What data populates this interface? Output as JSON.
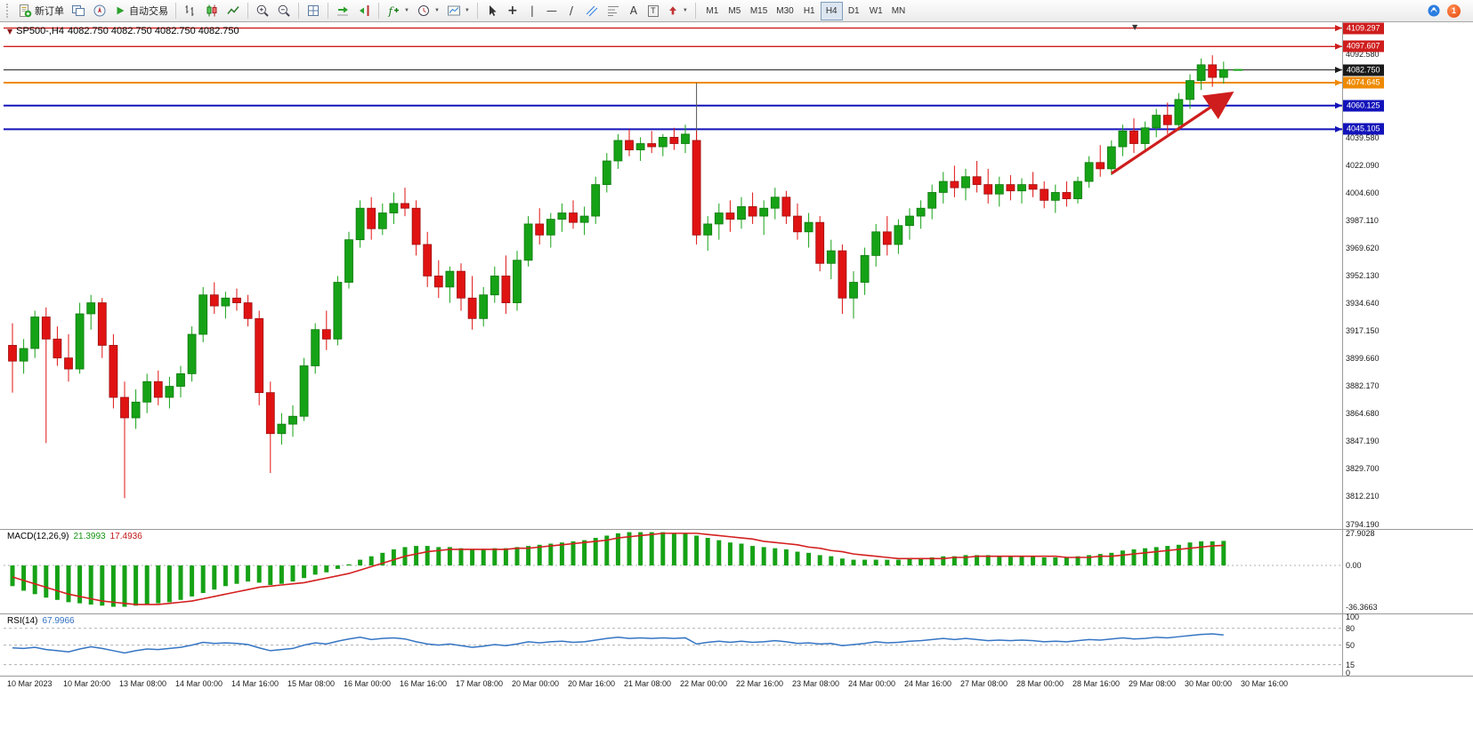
{
  "toolbar": {
    "new_order": "新订单",
    "auto_trading": "自动交易",
    "text_tool": "A",
    "label_tool": "T",
    "timeframes": [
      {
        "label": "M1",
        "active": false
      },
      {
        "label": "M5",
        "active": false
      },
      {
        "label": "M15",
        "active": false
      },
      {
        "label": "M30",
        "active": false
      },
      {
        "label": "H1",
        "active": false
      },
      {
        "label": "H4",
        "active": true
      },
      {
        "label": "D1",
        "active": false
      },
      {
        "label": "W1",
        "active": false
      },
      {
        "label": "MN",
        "active": false
      }
    ],
    "notification_count": "1"
  },
  "chart": {
    "title": "SP500-,H4",
    "ohlc": "4082.750 4082.750 4082.750 4082.750"
  },
  "chart_data": {
    "type": "candlestick",
    "symbol": "SP500-",
    "timeframe": "H4",
    "up_color": "#16a216",
    "down_color": "#e01313",
    "ylim": [
      3791.5,
      4113.0
    ],
    "candles": [
      [
        3908,
        3922,
        3878,
        3898
      ],
      [
        3898,
        3912,
        3890,
        3906
      ],
      [
        3906,
        3930,
        3900,
        3926
      ],
      [
        3926,
        3932,
        3846,
        3912
      ],
      [
        3912,
        3920,
        3895,
        3900
      ],
      [
        3900,
        3915,
        3885,
        3893
      ],
      [
        3893,
        3935,
        3890,
        3928
      ],
      [
        3928,
        3940,
        3918,
        3935
      ],
      [
        3935,
        3938,
        3900,
        3908
      ],
      [
        3908,
        3915,
        3868,
        3875
      ],
      [
        3875,
        3885,
        3811,
        3862
      ],
      [
        3862,
        3880,
        3855,
        3872
      ],
      [
        3872,
        3890,
        3865,
        3885
      ],
      [
        3885,
        3892,
        3870,
        3875
      ],
      [
        3875,
        3888,
        3868,
        3882
      ],
      [
        3882,
        3895,
        3875,
        3890
      ],
      [
        3890,
        3920,
        3885,
        3915
      ],
      [
        3915,
        3945,
        3910,
        3940
      ],
      [
        3940,
        3948,
        3928,
        3933
      ],
      [
        3933,
        3942,
        3925,
        3938
      ],
      [
        3938,
        3944,
        3930,
        3935
      ],
      [
        3935,
        3940,
        3920,
        3925
      ],
      [
        3925,
        3930,
        3870,
        3878
      ],
      [
        3878,
        3885,
        3827,
        3852
      ],
      [
        3852,
        3865,
        3845,
        3858
      ],
      [
        3858,
        3870,
        3850,
        3863
      ],
      [
        3863,
        3900,
        3860,
        3895
      ],
      [
        3895,
        3922,
        3890,
        3918
      ],
      [
        3918,
        3930,
        3905,
        3912
      ],
      [
        3912,
        3952,
        3908,
        3948
      ],
      [
        3948,
        3980,
        3944,
        3975
      ],
      [
        3975,
        4000,
        3970,
        3995
      ],
      [
        3995,
        4002,
        3975,
        3982
      ],
      [
        3982,
        3998,
        3978,
        3992
      ],
      [
        3992,
        4005,
        3985,
        3998
      ],
      [
        3998,
        4008,
        3990,
        3995
      ],
      [
        3995,
        4000,
        3965,
        3972
      ],
      [
        3972,
        3980,
        3945,
        3952
      ],
      [
        3952,
        3962,
        3938,
        3945
      ],
      [
        3945,
        3958,
        3935,
        3955
      ],
      [
        3955,
        3960,
        3930,
        3938
      ],
      [
        3938,
        3952,
        3918,
        3925
      ],
      [
        3925,
        3945,
        3920,
        3940
      ],
      [
        3940,
        3958,
        3935,
        3952
      ],
      [
        3952,
        3965,
        3928,
        3935
      ],
      [
        3935,
        3968,
        3930,
        3962
      ],
      [
        3962,
        3990,
        3958,
        3985
      ],
      [
        3985,
        3995,
        3972,
        3978
      ],
      [
        3978,
        3992,
        3970,
        3988
      ],
      [
        3988,
        3998,
        3980,
        3992
      ],
      [
        3992,
        4000,
        3982,
        3986
      ],
      [
        3986,
        3996,
        3978,
        3990
      ],
      [
        3990,
        4015,
        3985,
        4010
      ],
      [
        4010,
        4030,
        4005,
        4025
      ],
      [
        4025,
        4042,
        4020,
        4038
      ],
      [
        4038,
        4045,
        4028,
        4032
      ],
      [
        4032,
        4040,
        4025,
        4036
      ],
      [
        4036,
        4044,
        4030,
        4034
      ],
      [
        4034,
        4042,
        4028,
        4040
      ],
      [
        4040,
        4046,
        4032,
        4036
      ],
      [
        4036,
        4048,
        4030,
        4042
      ],
      [
        4038,
        4044,
        3972,
        3978
      ],
      [
        3978,
        3990,
        3968,
        3985
      ],
      [
        3985,
        3998,
        3975,
        3992
      ],
      [
        3992,
        4000,
        3980,
        3988
      ],
      [
        3988,
        4002,
        3982,
        3996
      ],
      [
        3996,
        4005,
        3985,
        3990
      ],
      [
        3990,
        4000,
        3978,
        3995
      ],
      [
        3995,
        4008,
        3988,
        4002
      ],
      [
        4002,
        4006,
        3985,
        3990
      ],
      [
        3990,
        3998,
        3975,
        3980
      ],
      [
        3980,
        3992,
        3970,
        3986
      ],
      [
        3986,
        3990,
        3955,
        3960
      ],
      [
        3960,
        3975,
        3950,
        3968
      ],
      [
        3968,
        3972,
        3928,
        3938
      ],
      [
        3938,
        3955,
        3925,
        3948
      ],
      [
        3948,
        3970,
        3940,
        3965
      ],
      [
        3965,
        3985,
        3958,
        3980
      ],
      [
        3980,
        3990,
        3965,
        3972
      ],
      [
        3972,
        3988,
        3966,
        3984
      ],
      [
        3984,
        3995,
        3975,
        3990
      ],
      [
        3990,
        4000,
        3982,
        3995
      ],
      [
        3995,
        4010,
        3988,
        4005
      ],
      [
        4005,
        4018,
        3998,
        4012
      ],
      [
        4012,
        4022,
        4002,
        4008
      ],
      [
        4008,
        4020,
        4000,
        4015
      ],
      [
        4015,
        4025,
        4005,
        4010
      ],
      [
        4010,
        4020,
        3998,
        4004
      ],
      [
        4004,
        4015,
        3996,
        4010
      ],
      [
        4010,
        4016,
        4000,
        4006
      ],
      [
        4006,
        4014,
        3998,
        4010
      ],
      [
        4010,
        4018,
        4002,
        4007
      ],
      [
        4007,
        4012,
        3995,
        4000
      ],
      [
        4000,
        4010,
        3992,
        4005
      ],
      [
        4005,
        4012,
        3996,
        4001
      ],
      [
        4001,
        4015,
        3998,
        4012
      ],
      [
        4012,
        4028,
        4008,
        4024
      ],
      [
        4024,
        4035,
        4015,
        4020
      ],
      [
        4020,
        4038,
        4016,
        4034
      ],
      [
        4034,
        4048,
        4028,
        4044
      ],
      [
        4044,
        4052,
        4030,
        4036
      ],
      [
        4036,
        4050,
        4032,
        4046
      ],
      [
        4046,
        4058,
        4040,
        4054
      ],
      [
        4054,
        4062,
        4042,
        4048
      ],
      [
        4048,
        4068,
        4044,
        4064
      ],
      [
        4064,
        4080,
        4058,
        4076
      ],
      [
        4076,
        4090,
        4070,
        4086
      ],
      [
        4086,
        4092,
        4072,
        4078
      ],
      [
        4078,
        4088,
        4074,
        4083
      ]
    ],
    "y_axis_labels": [
      "4092.580",
      "4039.580",
      "4022.090",
      "4004.600",
      "3987.110",
      "3969.620",
      "3952.130",
      "3934.640",
      "3917.150",
      "3899.660",
      "3882.170",
      "3864.680",
      "3847.190",
      "3829.700",
      "3812.210",
      "3794.190"
    ],
    "levels": [
      {
        "price": 4109.297,
        "label": "4109.297",
        "color": "#cf1d1d",
        "width": 1.4
      },
      {
        "price": 4097.607,
        "label": "4097.607",
        "color": "#cf1d1d",
        "width": 1.4
      },
      {
        "price": 4082.75,
        "label": "4082.750",
        "color": "#1a1a1a",
        "width": 1
      },
      {
        "price": 4074.645,
        "label": "4074.645",
        "color": "#ee8a00",
        "width": 2
      },
      {
        "price": 4060.125,
        "label": "4060.125",
        "color": "#1313bb",
        "width": 2
      },
      {
        "price": 4045.105,
        "label": "4045.105",
        "color": "#1313bb",
        "width": 2
      }
    ],
    "x_labels": [
      "10 Mar 2023",
      "10 Mar 20:00",
      "13 Mar 08:00",
      "14 Mar 00:00",
      "14 Mar 16:00",
      "15 Mar 08:00",
      "16 Mar 00:00",
      "16 Mar 16:00",
      "17 Mar 08:00",
      "20 Mar 00:00",
      "20 Mar 16:00",
      "21 Mar 08:00",
      "22 Mar 00:00",
      "22 Mar 16:00",
      "23 Mar 08:00",
      "24 Mar 00:00",
      "24 Mar 16:00",
      "27 Mar 08:00",
      "28 Mar 00:00",
      "28 Mar 16:00",
      "29 Mar 08:00",
      "30 Mar 00:00",
      "30 Mar 16:00"
    ],
    "bars_per_label": 5,
    "annotations": {
      "trend_arrow": {
        "from_index": 98,
        "from_price": 4017,
        "to_index": 108.5,
        "to_price": 4067,
        "color": "#cf1d1d"
      },
      "vertical_line": {
        "index": 61,
        "price_top": 4074.6,
        "price_bottom": 3976,
        "color": "#555555"
      },
      "last_price_tick": {
        "price": 4082.75,
        "color": "#16a216"
      }
    },
    "macd": {
      "name": "MACD(12,26,9)",
      "main_value": "21.3993",
      "signal_value": "17.4936",
      "ylim": [
        -41,
        31
      ],
      "hist_color": "#16a216",
      "signal_color": "#d42020",
      "axis_labels": [
        "27.9028",
        "0.00",
        "-36.3663"
      ],
      "histogram": [
        -18,
        -22,
        -25,
        -28,
        -30,
        -32,
        -33,
        -34,
        -35,
        -36,
        -36,
        -35,
        -34,
        -33,
        -32,
        -30,
        -27,
        -24,
        -21,
        -18,
        -16,
        -14,
        -15,
        -17,
        -16,
        -14,
        -11,
        -8,
        -6,
        -3,
        1,
        5,
        8,
        11,
        14,
        16,
        17,
        17,
        16,
        16,
        15,
        14,
        14,
        15,
        15,
        16,
        17,
        18,
        19,
        20,
        21,
        22,
        24,
        26,
        28,
        29,
        29,
        29,
        29,
        28,
        28,
        26,
        24,
        22,
        20,
        19,
        17,
        16,
        15,
        14,
        12,
        11,
        9,
        8,
        6,
        5,
        5,
        5,
        5,
        5,
        6,
        6,
        7,
        8,
        8,
        9,
        9,
        9,
        8,
        8,
        8,
        8,
        7,
        7,
        7,
        8,
        9,
        10,
        11,
        13,
        14,
        15,
        16,
        17,
        18,
        20,
        21,
        21,
        21.4
      ],
      "signal": [
        -10,
        -13,
        -16,
        -19,
        -22,
        -25,
        -27,
        -29,
        -31,
        -32,
        -33,
        -34,
        -34,
        -34,
        -33,
        -32,
        -31,
        -29,
        -27,
        -25,
        -23,
        -21,
        -19,
        -18,
        -17,
        -16,
        -15,
        -13,
        -11,
        -9,
        -7,
        -4,
        -1,
        2,
        5,
        8,
        10,
        12,
        13,
        14,
        14,
        14,
        14,
        14,
        14,
        15,
        15,
        16,
        17,
        18,
        19,
        20,
        21,
        22,
        24,
        25,
        26,
        27,
        28,
        28,
        28,
        28,
        27,
        26,
        25,
        24,
        23,
        21,
        20,
        19,
        18,
        16,
        15,
        13,
        12,
        10,
        9,
        8,
        7,
        6,
        6,
        6,
        6,
        6,
        7,
        7,
        8,
        8,
        8,
        8,
        8,
        8,
        8,
        8,
        7,
        7,
        7,
        8,
        8,
        9,
        10,
        11,
        12,
        13,
        14,
        15,
        16,
        17,
        17.5
      ]
    },
    "rsi": {
      "name": "RSI(14)",
      "value": "67.9966",
      "ylim": [
        -3,
        105
      ],
      "color": "#3575c4",
      "levels": [
        80,
        50,
        15
      ],
      "axis_labels": [
        "100",
        "80",
        "50",
        "15",
        "0"
      ],
      "values": [
        45,
        44,
        46,
        42,
        40,
        38,
        43,
        47,
        44,
        40,
        36,
        40,
        43,
        42,
        44,
        46,
        50,
        55,
        53,
        54,
        53,
        51,
        45,
        40,
        42,
        44,
        50,
        54,
        52,
        57,
        61,
        64,
        60,
        62,
        63,
        61,
        56,
        52,
        50,
        52,
        49,
        46,
        48,
        51,
        49,
        52,
        56,
        54,
        56,
        57,
        55,
        56,
        59,
        62,
        64,
        62,
        63,
        62,
        63,
        62,
        63,
        52,
        55,
        57,
        55,
        57,
        55,
        56,
        58,
        56,
        53,
        54,
        52,
        53,
        49,
        51,
        53,
        56,
        54,
        55,
        57,
        58,
        60,
        62,
        60,
        62,
        60,
        58,
        59,
        58,
        59,
        58,
        56,
        57,
        56,
        58,
        60,
        59,
        61,
        63,
        61,
        62,
        64,
        63,
        65,
        67,
        69,
        70,
        68
      ]
    }
  }
}
